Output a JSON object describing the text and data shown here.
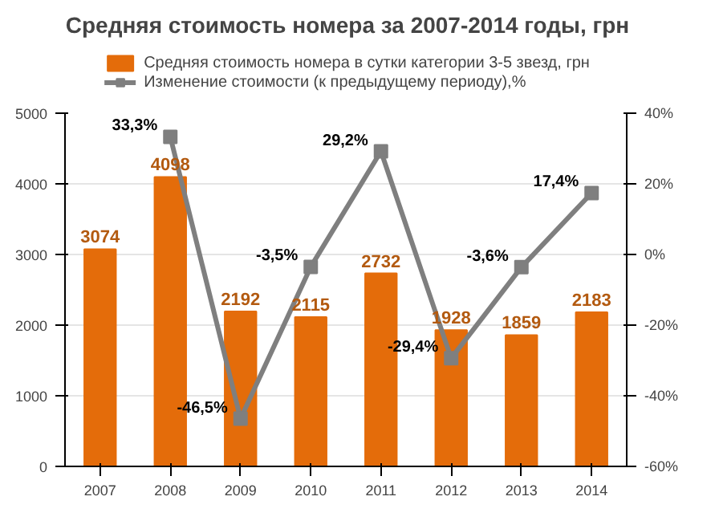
{
  "chart_data": {
    "type": "bar",
    "title": "Средняя стоимость номера за 2007-2014 годы, грн",
    "categories": [
      "2007",
      "2008",
      "2009",
      "2010",
      "2011",
      "2012",
      "2013",
      "2014"
    ],
    "series": [
      {
        "name": "Средняя стоимость номера в сутки категории 3-5 звезд, грн",
        "color": "#e46c0a",
        "values": [
          3074,
          4098,
          2192,
          2115,
          2732,
          1928,
          1859,
          2183
        ],
        "value_labels": [
          "3074",
          "4098",
          "2192",
          "2115",
          "2732",
          "1928",
          "1859",
          "2183"
        ]
      },
      {
        "name": "Изменение стоимости (к предыдущему периоду),%",
        "type": "line",
        "axis": "y2",
        "color": "#7f7f7f",
        "marker": "square",
        "values": [
          null,
          33.3,
          -46.5,
          -3.5,
          29.2,
          -29.4,
          -3.6,
          17.4
        ],
        "value_labels": [
          null,
          "33,3%",
          "-46,5%",
          "-3,5%",
          "29,2%",
          "-29,4%",
          "-3,6%",
          "17,4%"
        ]
      }
    ],
    "ylim": [
      0,
      5000
    ],
    "yticks": [
      0,
      1000,
      2000,
      3000,
      4000,
      5000
    ],
    "y2lim": [
      -60,
      40
    ],
    "y2ticks": [
      {
        "value": -60,
        "label": "-60%"
      },
      {
        "value": -40,
        "label": "-40%"
      },
      {
        "value": -20,
        "label": "-20%"
      },
      {
        "value": 0,
        "label": "0%"
      },
      {
        "value": 20,
        "label": "20%"
      },
      {
        "value": 40,
        "label": "40%"
      }
    ],
    "grid": "y",
    "legend": "top"
  }
}
